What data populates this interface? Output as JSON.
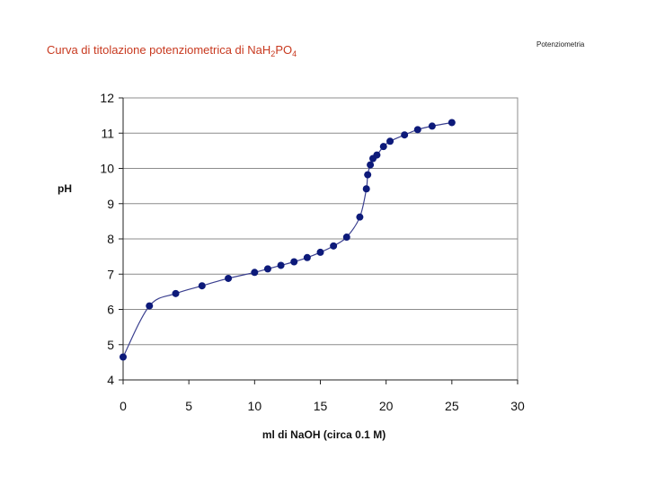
{
  "slide": {
    "title_main": "Curva di titolazione potenziometrica di NaH",
    "title_sub1": "2",
    "title_mid": "PO",
    "title_sub2": "4",
    "corner_label": "Potenziometria"
  },
  "chart_data": {
    "type": "line",
    "title": "Curva di titolazione potenziometrica di NaH2PO4",
    "xlabel": "ml di NaOH (circa 0.1 M)",
    "ylabel": "pH",
    "xlim": [
      0,
      30
    ],
    "ylim": [
      4,
      12
    ],
    "xticks": [
      0,
      5,
      10,
      15,
      20,
      25,
      30
    ],
    "yticks": [
      4,
      5,
      6,
      7,
      8,
      9,
      10,
      11,
      12
    ],
    "grid": "horizontal",
    "marker_color": "#0d1a7a",
    "line_color": "#3a3f8f",
    "series": [
      {
        "x": [
          0,
          2,
          4,
          6,
          8,
          10,
          11,
          12,
          13,
          14,
          15,
          16,
          17,
          18,
          18.5,
          18.6,
          18.8,
          19.0,
          19.3,
          19.8,
          20.3,
          21.4,
          22.4,
          23.5,
          25
        ],
        "y": [
          4.65,
          6.1,
          6.45,
          6.67,
          6.88,
          7.05,
          7.15,
          7.25,
          7.35,
          7.47,
          7.62,
          7.8,
          8.05,
          8.62,
          9.42,
          9.82,
          10.1,
          10.28,
          10.38,
          10.62,
          10.77,
          10.95,
          11.1,
          11.2,
          11.3
        ]
      }
    ]
  }
}
